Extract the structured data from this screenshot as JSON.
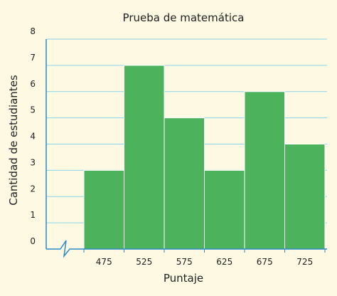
{
  "chart_data": {
    "type": "bar",
    "title": "Prueba de matemática",
    "xlabel": "Puntaje",
    "ylabel": "Cantidad de estudiantes",
    "categories": [
      "475",
      "525",
      "575",
      "625",
      "675",
      "725"
    ],
    "values": [
      3,
      7,
      5,
      3,
      6,
      4
    ],
    "ylim": [
      0,
      8
    ],
    "yticks": [
      "0",
      "1",
      "2",
      "3",
      "4",
      "5",
      "6",
      "7",
      "8"
    ],
    "grid": true,
    "x_axis_break": true,
    "bar_color": "#4cb35c",
    "bar_edge_color": "#ffffff",
    "grid_color": "#8fd3ea",
    "axis_color": "#2f89c5",
    "background_color": "#fdf9e3"
  }
}
